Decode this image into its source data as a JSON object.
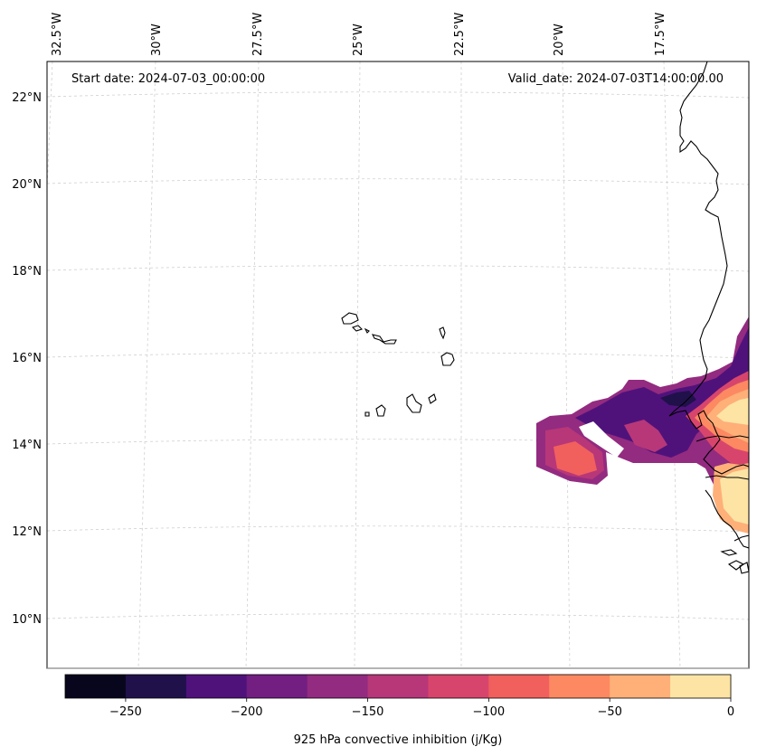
{
  "map": {
    "start_date": "Start date: 2024-07-03_00:00:00",
    "valid_date": "Valid_date: 2024-07-03T14:00:00.00",
    "lon_labels": [
      "32.5°W",
      "30°W",
      "27.5°W",
      "25°W",
      "22.5°W",
      "20°W",
      "17.5°W"
    ],
    "lat_labels": [
      "22°N",
      "20°N",
      "18°N",
      "16°N",
      "14°N",
      "12°N",
      "10°N"
    ],
    "gridlines": true
  },
  "colorbar": {
    "label": "925 hPa convective inhibition (j/Kg)",
    "min": -275,
    "max": 0,
    "step": 25,
    "tick_values": [
      -250,
      -200,
      -150,
      -100,
      -50,
      0
    ],
    "tick_labels": [
      "−250",
      "−200",
      "−150",
      "−100",
      "−50",
      "0"
    ],
    "colors": [
      "#07061c",
      "#20114b",
      "#4f127b",
      "#721f81",
      "#932b80",
      "#b73779",
      "#d8456c",
      "#f1605d",
      "#fc8961",
      "#feb078",
      "#fde4a4"
    ]
  }
}
